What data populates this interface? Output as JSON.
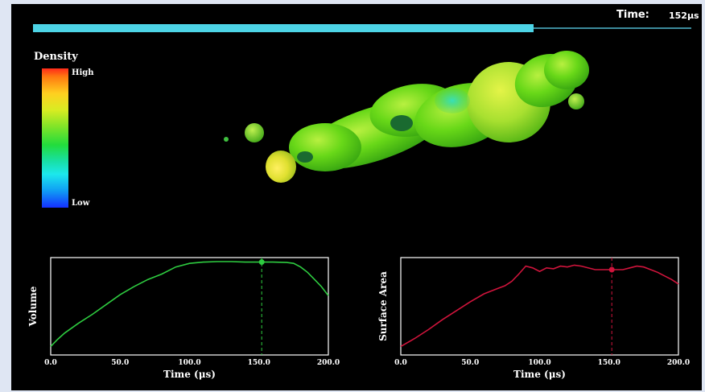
{
  "header": {
    "time_label": "Time:",
    "time_value": "152μs"
  },
  "timeline": {
    "progress": 0.76,
    "fill_color": "#4dd4e6",
    "track_color": "#3d8b9c"
  },
  "legend": {
    "title": "Density",
    "high_label": "High",
    "low_label": "Low"
  },
  "colors": {
    "volume_line": "#2ecc40",
    "surface_line": "#d0143c",
    "frame": "#ffffff",
    "background": "#000000"
  },
  "chart_data": [
    {
      "type": "line",
      "title": "",
      "xlabel": "Time  (μs)",
      "ylabel": "Volume",
      "xlim": [
        0,
        200
      ],
      "ylim": [
        0,
        1
      ],
      "xticks": [
        "0.0",
        "50.0",
        "100.0",
        "150.0",
        "200.0"
      ],
      "cursor_x": 152,
      "series": [
        {
          "x": [
            0,
            5,
            10,
            20,
            30,
            40,
            50,
            60,
            70,
            80,
            90,
            100,
            110,
            120,
            130,
            140,
            150,
            160,
            170,
            175,
            180,
            185,
            190,
            195,
            200
          ],
          "y": [
            0.05,
            0.13,
            0.2,
            0.31,
            0.41,
            0.52,
            0.63,
            0.72,
            0.8,
            0.86,
            0.94,
            0.98,
            0.995,
            1.0,
            1.0,
            0.995,
            0.995,
            0.995,
            0.99,
            0.98,
            0.94,
            0.88,
            0.8,
            0.72,
            0.62
          ]
        }
      ]
    },
    {
      "type": "line",
      "title": "",
      "xlabel": "Time  (μs)",
      "ylabel": "Surface Area",
      "xlim": [
        0,
        200
      ],
      "ylim": [
        0,
        1
      ],
      "xticks": [
        "0.0",
        "50.0",
        "100.0",
        "150.0",
        "200.0"
      ],
      "cursor_x": 152,
      "series": [
        {
          "x": [
            0,
            10,
            20,
            30,
            40,
            50,
            60,
            70,
            75,
            80,
            85,
            90,
            95,
            100,
            105,
            110,
            115,
            120,
            125,
            130,
            140,
            150,
            160,
            165,
            170,
            175,
            180,
            185,
            190,
            195,
            200
          ],
          "y": [
            0.05,
            0.14,
            0.24,
            0.35,
            0.45,
            0.55,
            0.64,
            0.7,
            0.73,
            0.78,
            0.86,
            0.95,
            0.93,
            0.89,
            0.93,
            0.92,
            0.95,
            0.94,
            0.96,
            0.95,
            0.91,
            0.91,
            0.91,
            0.93,
            0.95,
            0.94,
            0.91,
            0.88,
            0.84,
            0.8,
            0.75
          ]
        }
      ]
    }
  ]
}
